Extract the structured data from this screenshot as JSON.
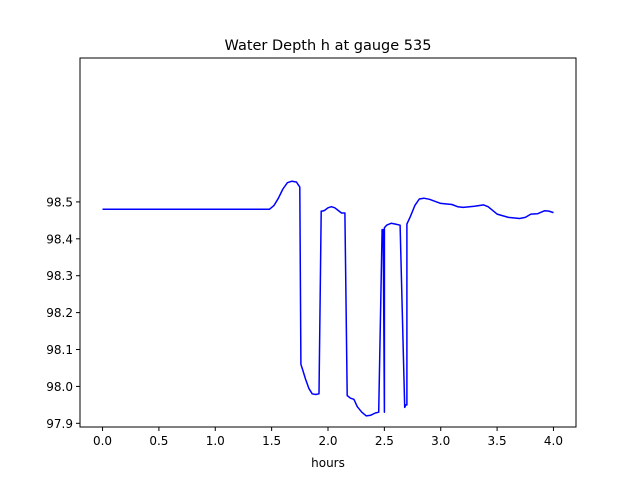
{
  "chart_data": {
    "type": "line",
    "title": "Water Depth h at gauge 535",
    "xlabel": "hours",
    "ylabel": "",
    "xlim": [
      -0.2,
      4.2
    ],
    "ylim": [
      97.89,
      98.89
    ],
    "xticks": [
      0.0,
      0.5,
      1.0,
      1.5,
      2.0,
      2.5,
      3.0,
      3.5,
      4.0
    ],
    "xtick_labels": [
      "0.0",
      "0.5",
      "1.0",
      "1.5",
      "2.0",
      "2.5",
      "3.0",
      "3.5",
      "4.0"
    ],
    "yticks": [
      97.9,
      98.0,
      98.1,
      98.2,
      98.3,
      98.4,
      98.5
    ],
    "ytick_labels": [
      "97.9",
      "98.0",
      "98.1",
      "98.2",
      "98.3",
      "98.4",
      "98.5"
    ],
    "grid": false,
    "line_color": "#0000ff",
    "series": [
      {
        "x": [
          0.0,
          0.5,
          1.0,
          1.48,
          1.52,
          1.56,
          1.6,
          1.64,
          1.68,
          1.72,
          1.75,
          1.76,
          1.77,
          1.8,
          1.83,
          1.86,
          1.89,
          1.92,
          1.94,
          1.95,
          1.97,
          2.0,
          2.03,
          2.06,
          2.09,
          2.12,
          2.15,
          2.17,
          2.18,
          2.2,
          2.23,
          2.26,
          2.3,
          2.34,
          2.38,
          2.42,
          2.45,
          2.48,
          2.49,
          2.5,
          2.5,
          2.52,
          2.56,
          2.6,
          2.64,
          2.68,
          2.69,
          2.7,
          2.7,
          2.73,
          2.77,
          2.81,
          2.85,
          2.9,
          3.0,
          3.1,
          3.15,
          3.2,
          3.3,
          3.38,
          3.42,
          3.5,
          3.6,
          3.7,
          3.75,
          3.8,
          3.86,
          3.92,
          3.96,
          4.0
        ],
        "y": [
          98.48,
          98.48,
          98.48,
          98.48,
          98.49,
          98.51,
          98.535,
          98.552,
          98.556,
          98.554,
          98.54,
          98.06,
          98.05,
          98.02,
          97.995,
          97.98,
          97.978,
          97.98,
          98.475,
          98.475,
          98.477,
          98.484,
          98.487,
          98.484,
          98.477,
          98.47,
          98.47,
          97.975,
          97.973,
          97.968,
          97.965,
          97.945,
          97.93,
          97.92,
          97.922,
          97.928,
          97.93,
          98.425,
          98.425,
          97.93,
          98.43,
          98.437,
          98.442,
          98.44,
          98.437,
          97.943,
          97.95,
          97.95,
          98.44,
          98.46,
          98.49,
          98.508,
          98.51,
          98.507,
          98.496,
          98.493,
          98.487,
          98.485,
          98.488,
          98.492,
          98.487,
          98.467,
          98.458,
          98.455,
          98.458,
          98.467,
          98.468,
          98.476,
          98.475,
          98.471
        ]
      }
    ]
  }
}
